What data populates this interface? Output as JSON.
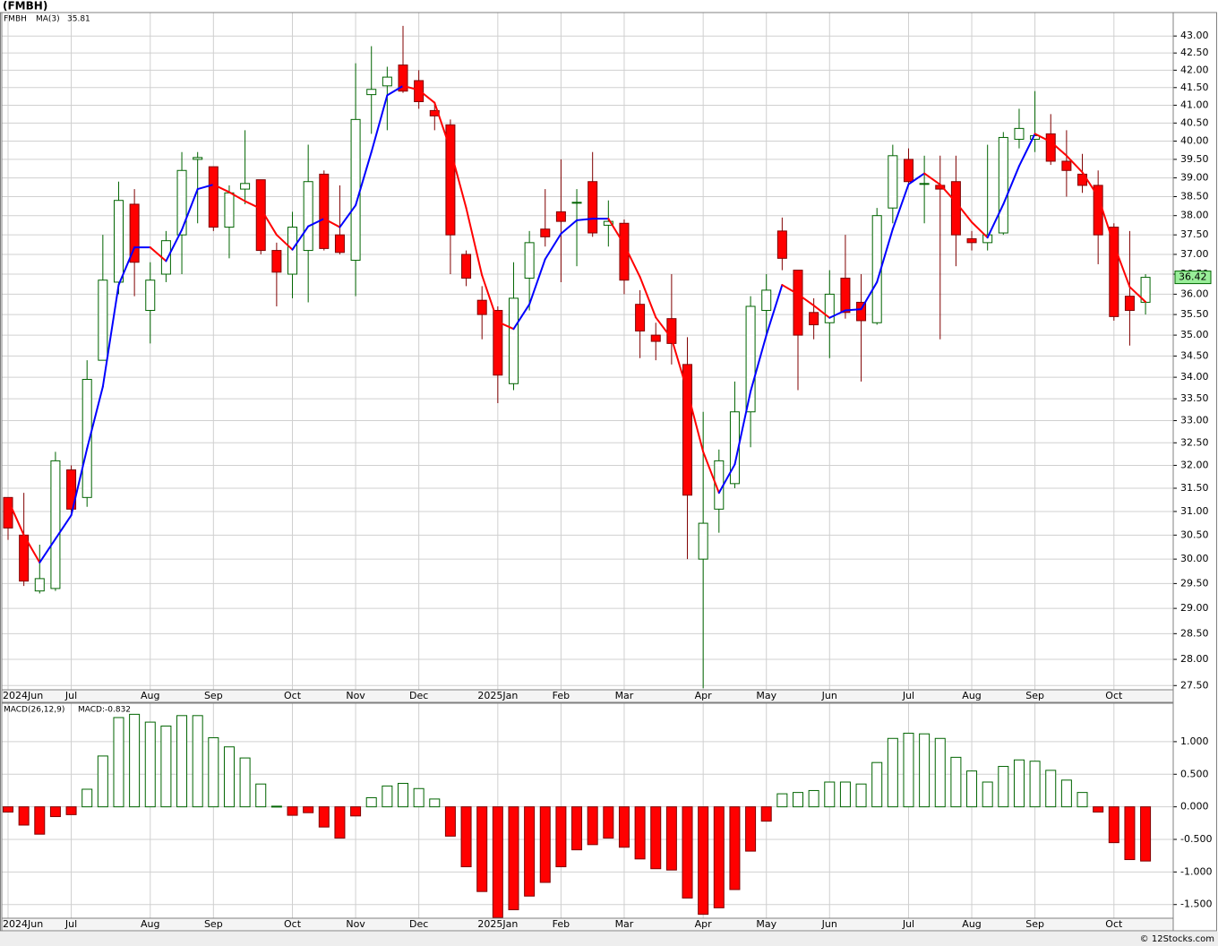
{
  "source": "© 12Stocks.com",
  "chart_data": [
    {
      "type": "candlestick",
      "title": "(FMBH)",
      "log_scale": true,
      "grid": true,
      "categories": [
        "2024Jun",
        null,
        null,
        null,
        "Jul",
        null,
        null,
        null,
        null,
        "Aug",
        null,
        null,
        null,
        "Sep",
        null,
        null,
        null,
        null,
        "Oct",
        null,
        null,
        null,
        "Nov",
        null,
        null,
        null,
        "Dec",
        null,
        null,
        null,
        null,
        "2025Jan",
        null,
        null,
        null,
        "Feb",
        null,
        null,
        null,
        "Mar",
        null,
        null,
        null,
        null,
        "Apr",
        null,
        null,
        null,
        "May",
        null,
        null,
        null,
        "Jun",
        null,
        null,
        null,
        null,
        "Jul",
        null,
        null,
        null,
        "Aug",
        null,
        null,
        null,
        "Sep",
        null,
        null,
        null,
        null,
        "Oct",
        null,
        null
      ],
      "up_color": "#006400",
      "down_color": "#ff0000",
      "last_label_color": "#99ee99",
      "series": [
        {
          "name": "FMBH",
          "color": "#006400",
          "open": [
            31.3,
            30.5,
            29.35,
            29.4,
            31.9,
            31.3,
            34.4,
            36.3,
            38.3,
            35.6,
            36.5,
            37.5,
            39.5,
            39.3,
            37.7,
            38.7,
            38.95,
            37.1,
            36.5,
            37.1,
            39.1,
            37.5,
            36.85,
            41.3,
            41.55,
            42.15,
            41.7,
            40.85,
            40.45,
            37.0,
            35.85,
            35.6,
            33.85,
            36.4,
            37.65,
            38.1,
            38.35,
            38.9,
            37.75,
            37.8,
            35.75,
            35.0,
            35.4,
            34.3,
            30.0,
            31.05,
            31.6,
            33.2,
            35.6,
            37.6,
            36.6,
            35.55,
            35.3,
            36.4,
            35.8,
            35.3,
            38.2,
            39.5,
            38.85,
            38.8,
            38.9,
            37.4,
            37.3,
            37.55,
            40.05,
            40.05,
            40.2,
            39.45,
            39.1,
            38.8,
            37.7,
            35.95,
            35.8
          ],
          "high": [
            31.3,
            31.4,
            30.3,
            32.3,
            32.0,
            34.4,
            37.5,
            38.9,
            38.7,
            36.8,
            37.6,
            39.7,
            39.7,
            39.3,
            38.8,
            40.3,
            38.95,
            37.3,
            38.1,
            39.9,
            39.2,
            38.8,
            42.2,
            42.7,
            42.1,
            43.3,
            42.0,
            41.1,
            40.6,
            37.1,
            36.2,
            35.7,
            36.8,
            37.6,
            38.7,
            39.5,
            38.7,
            39.7,
            38.4,
            37.9,
            36.1,
            35.3,
            36.5,
            34.95,
            33.2,
            32.35,
            33.9,
            35.95,
            36.5,
            37.95,
            36.6,
            35.9,
            36.6,
            37.5,
            36.5,
            38.2,
            39.9,
            39.8,
            39.6,
            39.6,
            39.6,
            37.6,
            39.9,
            40.25,
            40.9,
            41.4,
            40.75,
            40.3,
            39.65,
            39.2,
            37.8,
            37.6,
            36.5
          ],
          "low": [
            30.4,
            29.45,
            29.3,
            29.35,
            30.9,
            31.1,
            34.4,
            36.0,
            35.95,
            34.8,
            36.3,
            36.5,
            37.8,
            37.6,
            36.9,
            38.3,
            37.0,
            35.7,
            35.9,
            35.8,
            37.1,
            37.0,
            35.95,
            40.2,
            40.3,
            41.35,
            40.9,
            40.3,
            36.5,
            36.2,
            34.9,
            33.4,
            33.7,
            35.6,
            37.2,
            36.3,
            36.7,
            37.45,
            37.2,
            36.0,
            34.45,
            34.4,
            34.3,
            30.0,
            27.45,
            30.55,
            31.5,
            32.4,
            35.0,
            36.6,
            33.7,
            34.9,
            34.45,
            35.4,
            33.9,
            35.25,
            37.8,
            38.85,
            37.8,
            34.9,
            36.7,
            37.1,
            37.1,
            37.5,
            39.8,
            39.7,
            39.35,
            38.5,
            38.6,
            36.75,
            35.35,
            34.75,
            35.5
          ],
          "close": [
            30.65,
            29.55,
            29.6,
            32.1,
            31.05,
            33.95,
            36.35,
            38.4,
            36.8,
            36.35,
            37.35,
            39.2,
            39.55,
            37.7,
            38.6,
            38.85,
            37.1,
            36.55,
            37.7,
            38.9,
            37.15,
            37.05,
            40.6,
            41.45,
            41.8,
            41.4,
            41.1,
            40.7,
            37.5,
            36.4,
            35.5,
            34.05,
            35.9,
            37.3,
            37.45,
            37.85,
            38.35,
            37.55,
            37.85,
            36.35,
            35.1,
            34.85,
            34.8,
            31.35,
            30.75,
            32.1,
            33.2,
            35.7,
            36.1,
            36.9,
            35.0,
            35.25,
            36.0,
            35.55,
            35.35,
            38.0,
            39.6,
            38.9,
            38.85,
            38.7,
            37.5,
            37.3,
            37.5,
            40.1,
            40.35,
            40.15,
            39.45,
            39.2,
            38.8,
            37.5,
            35.45,
            35.6,
            36.42
          ]
        },
        {
          "name": "MA(3)",
          "color": "#0000ff",
          "down_color": "#ff0000",
          "values": [
            31.25,
            30.5,
            29.93,
            30.42,
            30.92,
            32.37,
            33.78,
            36.23,
            37.18,
            37.18,
            36.83,
            37.63,
            38.7,
            38.82,
            38.62,
            38.38,
            38.18,
            37.5,
            37.12,
            37.72,
            37.92,
            37.7,
            38.27,
            39.7,
            41.28,
            41.55,
            41.43,
            41.07,
            39.77,
            38.2,
            36.47,
            35.32,
            35.15,
            35.75,
            36.88,
            37.53,
            37.88,
            37.92,
            37.92,
            37.25,
            36.43,
            35.43,
            34.92,
            33.67,
            32.3,
            31.4,
            32.02,
            33.67,
            35.0,
            36.23,
            36.0,
            35.72,
            35.42,
            35.6,
            35.63,
            36.3,
            37.65,
            38.83,
            39.12,
            38.82,
            38.35,
            37.83,
            37.43,
            38.3,
            39.32,
            40.2,
            39.98,
            39.6,
            39.15,
            38.5,
            37.25,
            36.18,
            35.81
          ]
        }
      ],
      "ylim": [
        27.42,
        43.7
      ],
      "yticks": [
        {
          "value": 27.5,
          "label": "27.50"
        },
        {
          "value": 28,
          "label": "28.00"
        },
        {
          "value": 28.5,
          "label": "28.50"
        },
        {
          "value": 29,
          "label": "29.00"
        },
        {
          "value": 29.5,
          "label": "29.50"
        },
        {
          "value": 30,
          "label": "30.00"
        },
        {
          "value": 30.5,
          "label": "30.50"
        },
        {
          "value": 31,
          "label": "31.00"
        },
        {
          "value": 31.5,
          "label": "31.50"
        },
        {
          "value": 32,
          "label": "32.00"
        },
        {
          "value": 32.5,
          "label": "32.50"
        },
        {
          "value": 33,
          "label": "33.00"
        },
        {
          "value": 33.5,
          "label": "33.50"
        },
        {
          "value": 34,
          "label": "34.00"
        },
        {
          "value": 34.5,
          "label": "34.50"
        },
        {
          "value": 35,
          "label": "35.00"
        },
        {
          "value": 35.5,
          "label": "35.50"
        },
        {
          "value": 36,
          "label": "36.00"
        },
        {
          "value": 36.5,
          "label": "36.50"
        },
        {
          "value": 37,
          "label": "37.00"
        },
        {
          "value": 37.5,
          "label": "37.50"
        },
        {
          "value": 38,
          "label": "38.00"
        },
        {
          "value": 38.5,
          "label": "38.50"
        },
        {
          "value": 39,
          "label": "39.00"
        },
        {
          "value": 39.5,
          "label": "39.50"
        },
        {
          "value": 40,
          "label": "40.00"
        },
        {
          "value": 40.5,
          "label": "40.50"
        },
        {
          "value": 41,
          "label": "41.00"
        },
        {
          "value": 41.5,
          "label": "41.50"
        },
        {
          "value": 42,
          "label": "42.00"
        },
        {
          "value": 42.5,
          "label": "42.50"
        },
        {
          "value": 43,
          "label": "43.00"
        }
      ]
    },
    {
      "type": "bar",
      "title": "MACD(26,12,9)",
      "legend": "MACD:-0.832",
      "legend_color": "#0000ff",
      "grid": true,
      "categories": [
        "2024Jun",
        null,
        null,
        null,
        "Jul",
        null,
        null,
        null,
        null,
        "Aug",
        null,
        null,
        null,
        "Sep",
        null,
        null,
        null,
        null,
        "Oct",
        null,
        null,
        null,
        "Nov",
        null,
        null,
        null,
        "Dec",
        null,
        null,
        null,
        null,
        "2025Jan",
        null,
        null,
        null,
        "Feb",
        null,
        null,
        null,
        "Mar",
        null,
        null,
        null,
        null,
        "Apr",
        null,
        null,
        null,
        "May",
        null,
        null,
        null,
        "Jun",
        null,
        null,
        null,
        null,
        "Jul",
        null,
        null,
        null,
        "Aug",
        null,
        null,
        null,
        "Sep",
        null,
        null,
        null,
        null,
        "Oct",
        null,
        null
      ],
      "up_color": "#006400",
      "down_color": "#ff0000",
      "values": [
        -0.08,
        -0.28,
        -0.42,
        -0.15,
        -0.12,
        0.27,
        0.78,
        1.37,
        1.42,
        1.3,
        1.24,
        1.4,
        1.4,
        1.06,
        0.92,
        0.75,
        0.35,
        0.01,
        -0.13,
        -0.09,
        -0.31,
        -0.48,
        -0.14,
        0.14,
        0.32,
        0.36,
        0.28,
        0.12,
        -0.45,
        -0.92,
        -1.3,
        -1.7,
        -1.58,
        -1.37,
        -1.16,
        -0.92,
        -0.66,
        -0.58,
        -0.48,
        -0.62,
        -0.8,
        -0.95,
        -0.97,
        -1.4,
        -1.65,
        -1.55,
        -1.27,
        -0.68,
        -0.22,
        0.2,
        0.22,
        0.25,
        0.38,
        0.38,
        0.35,
        0.68,
        1.05,
        1.13,
        1.12,
        1.05,
        0.76,
        0.55,
        0.38,
        0.62,
        0.72,
        0.7,
        0.56,
        0.41,
        0.22,
        -0.08,
        -0.55,
        -0.81,
        -0.832
      ],
      "ylim": [
        -1.71,
        1.59
      ],
      "yticks": [
        {
          "value": -1.5,
          "label": "-1.500"
        },
        {
          "value": -1,
          "label": "-1.000"
        },
        {
          "value": -0.5,
          "label": "-0.500"
        },
        {
          "value": 0,
          "label": "0.000"
        },
        {
          "value": 0.5,
          "label": "0.500"
        },
        {
          "value": 1,
          "label": "1.000"
        }
      ]
    }
  ]
}
